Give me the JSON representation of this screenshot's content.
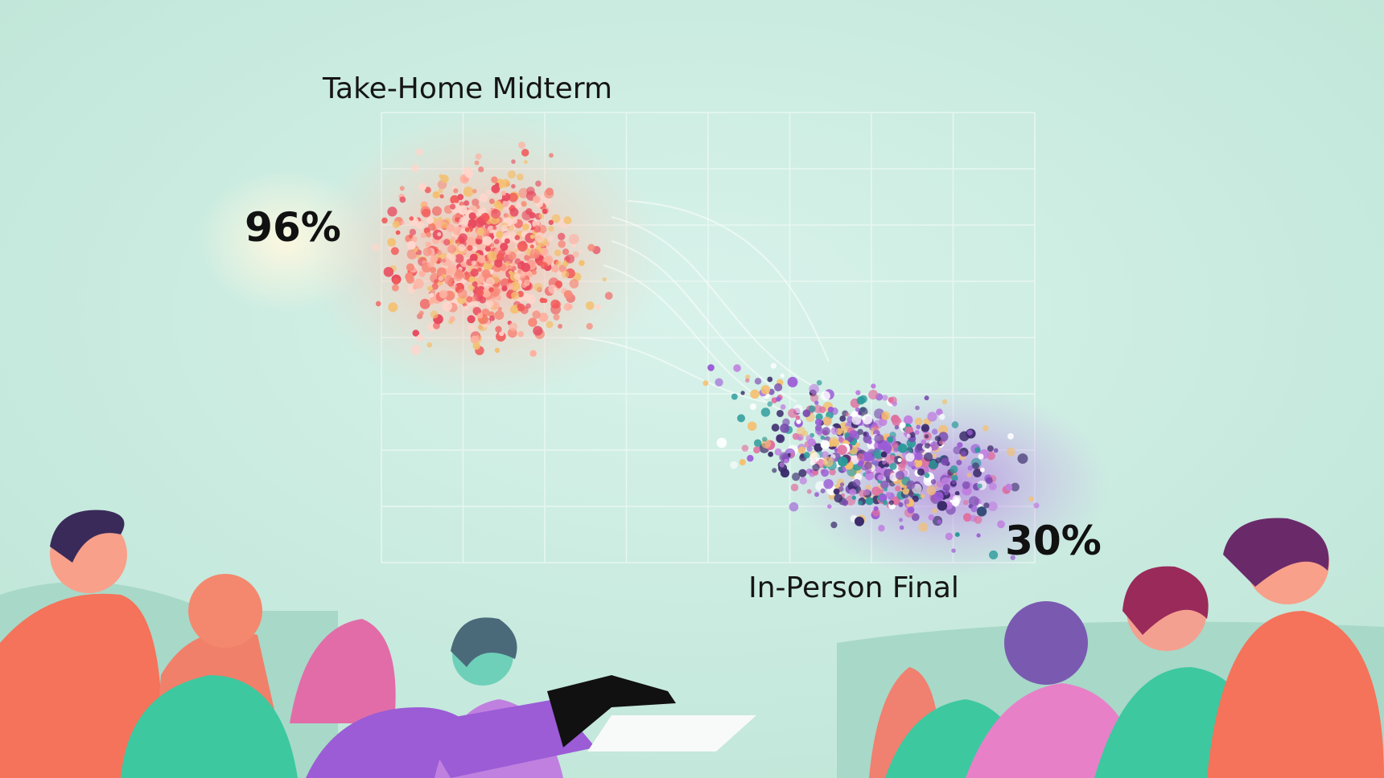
{
  "clusters": [
    {
      "label": "Take-Home Midterm",
      "value_label": "96%"
    },
    {
      "label": "In-Person Final",
      "value_label": "30%"
    }
  ]
}
